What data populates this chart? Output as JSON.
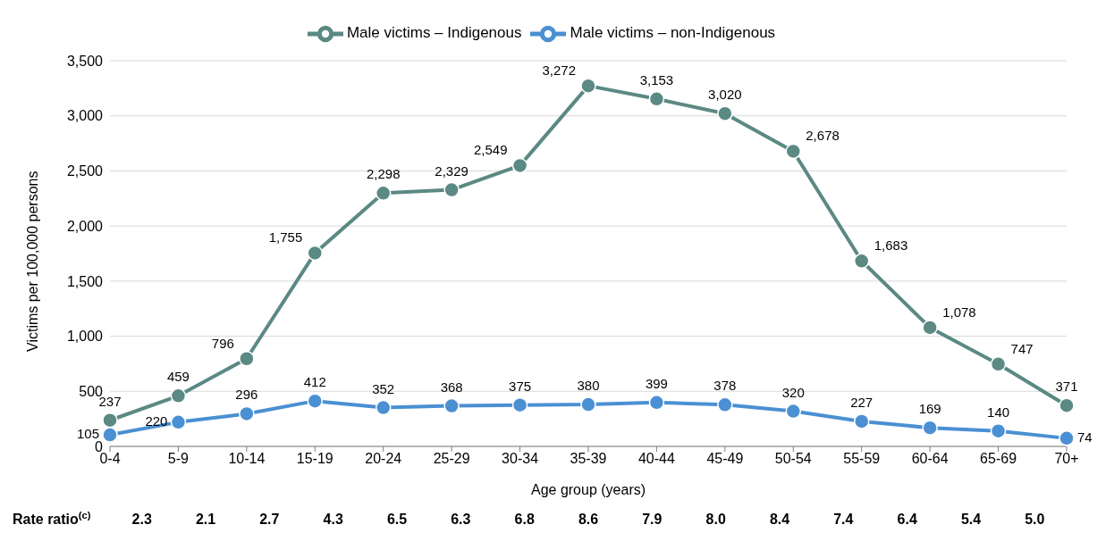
{
  "chart_data": {
    "type": "line",
    "xlabel": "Age group (years)",
    "ylabel": "Victims per 100,000 persons",
    "categories": [
      "0-4",
      "5-9",
      "10-14",
      "15-19",
      "20-24",
      "25-29",
      "30-34",
      "35-39",
      "40-44",
      "45-49",
      "50-54",
      "55-59",
      "60-64",
      "65-69",
      "70+"
    ],
    "series": [
      {
        "name": "Male victims – Indigenous",
        "color": "#5b8984",
        "values": [
          237,
          459,
          796,
          1755,
          2298,
          2329,
          2549,
          3272,
          3153,
          3020,
          2678,
          1683,
          1078,
          747,
          371
        ],
        "value_labels": [
          "237",
          "459",
          "796",
          "1,755",
          "2,298",
          "2,329",
          "2,549",
          "3,272",
          "3,153",
          "3,020",
          "2,678",
          "1,683",
          "1,078",
          "747",
          "371"
        ]
      },
      {
        "name": "Male victims – non-Indigenous",
        "color": "#4a90d2",
        "values": [
          105,
          220,
          296,
          412,
          352,
          368,
          375,
          380,
          399,
          378,
          320,
          227,
          169,
          140,
          74
        ],
        "value_labels": [
          "105",
          "220",
          "296",
          "412",
          "352",
          "368",
          "375",
          "380",
          "399",
          "378",
          "320",
          "227",
          "169",
          "140",
          "74"
        ]
      }
    ],
    "ylim": [
      0,
      3500
    ],
    "yticks": [
      0,
      {
        "value": 500,
        "label": "500"
      },
      {
        "value": 1000,
        "label": "1,000"
      },
      {
        "value": 1500,
        "label": "1,500"
      },
      {
        "value": 2000,
        "label": "2,000"
      },
      {
        "value": 2500,
        "label": "2,500"
      },
      {
        "value": 3000,
        "label": "3,000"
      },
      {
        "value": 3500,
        "label": "3,500"
      }
    ],
    "grid": "y",
    "legend": "top",
    "marker": "circle",
    "line_style": "solid",
    "annotations": [
      "Rate ratio$^{(c)}$",
      "2.3",
      "2.1",
      "2.7",
      "4.3",
      "6.5",
      "6.3",
      "6.8",
      "8.6",
      "7.9",
      "8.0",
      "8.4",
      "7.4",
      "6.4",
      "5.4",
      "5.0"
    ]
  }
}
